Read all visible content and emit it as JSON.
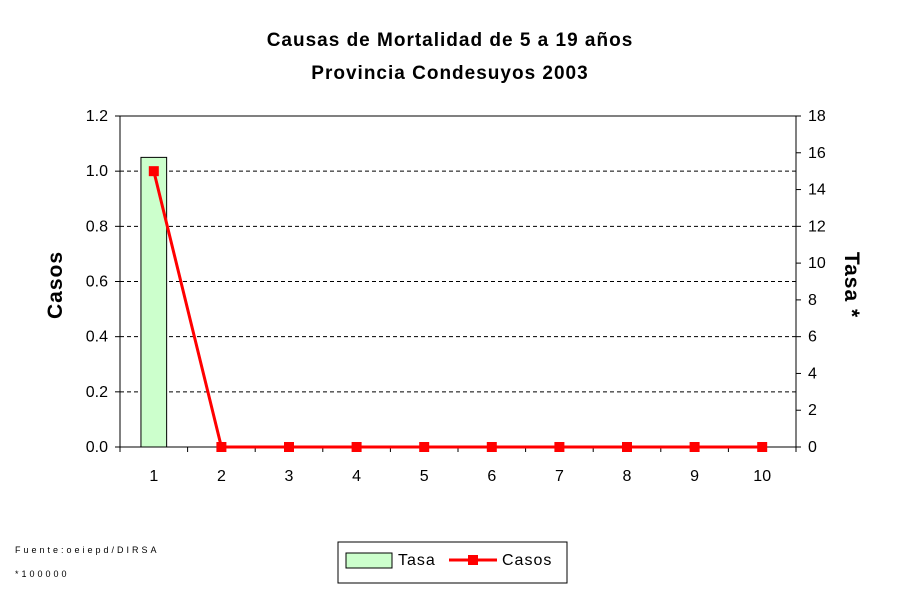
{
  "chart_data": {
    "type": "bar",
    "title_line1": "Causas de Mortalidad de 5 a 19 años",
    "title_line2": "Provincia Condesuyos 2003",
    "categories": [
      "1",
      "2",
      "3",
      "4",
      "5",
      "6",
      "7",
      "8",
      "9",
      "10"
    ],
    "y_left_label": "Casos",
    "y_right_label": "Tasa *",
    "y_left_lim": [
      0,
      1.2
    ],
    "y_left_ticks": [
      "0.0",
      "0.2",
      "0.4",
      "0.6",
      "0.8",
      "1.0",
      "1.2"
    ],
    "y_right_lim": [
      0,
      18
    ],
    "y_right_ticks": [
      "0",
      "2",
      "4",
      "6",
      "8",
      "10",
      "12",
      "14",
      "16",
      "18"
    ],
    "grid": "dashed horizontal",
    "legend_placement": "bottom-center",
    "series": [
      {
        "name": "Tasa",
        "kind": "bar",
        "axis": "left",
        "color": "#ccffcc",
        "values": [
          1.05,
          0,
          0,
          0,
          0,
          0,
          0,
          0,
          0,
          0
        ]
      },
      {
        "name": "Casos",
        "kind": "line",
        "axis": "right",
        "color": "#ff0000",
        "values": [
          15,
          0,
          0,
          0,
          0,
          0,
          0,
          0,
          0,
          0
        ]
      }
    ]
  },
  "footnote_source": "Fuente:oeiepd/DIRSA",
  "footnote_rate": "*100000"
}
